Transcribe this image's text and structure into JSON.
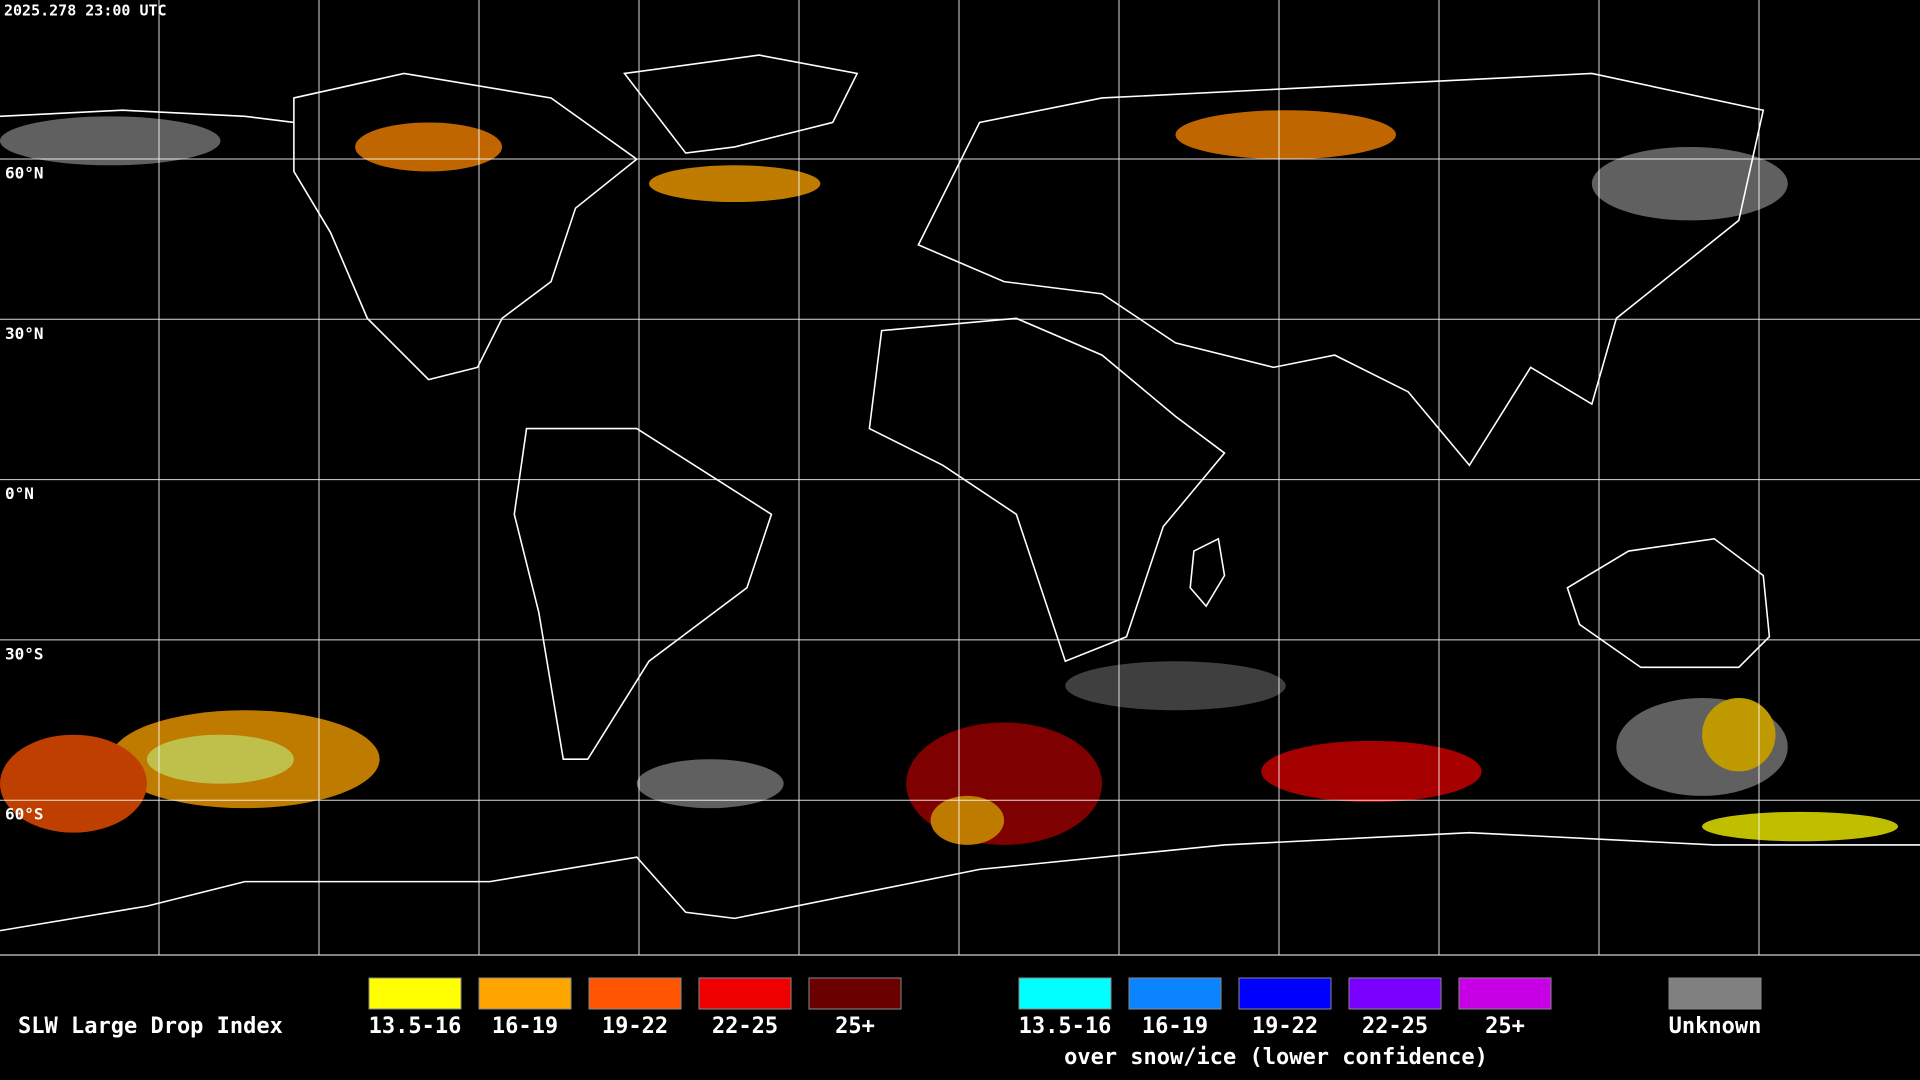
{
  "header": {
    "timestamp": "2025.278 23:00 UTC"
  },
  "map": {
    "latitude_labels": [
      "60°N",
      "30°N",
      "0°N",
      "30°S",
      "60°S"
    ]
  },
  "legend": {
    "title": "SLW Large Drop Index",
    "groups": [
      {
        "items": [
          {
            "label": "13.5-16",
            "color": "#ffff00"
          },
          {
            "label": "16-19",
            "color": "#ffa500"
          },
          {
            "label": "19-22",
            "color": "#ff5500"
          },
          {
            "label": "22-25",
            "color": "#ee0000"
          },
          {
            "label": "25+",
            "color": "#6b0000"
          }
        ]
      },
      {
        "items": [
          {
            "label": "13.5-16",
            "color": "#00ffff"
          },
          {
            "label": "16-19",
            "color": "#0a84ff"
          },
          {
            "label": "19-22",
            "color": "#0000ff"
          },
          {
            "label": "22-25",
            "color": "#7a00ff"
          },
          {
            "label": "25+",
            "color": "#c800e6"
          }
        ],
        "note": "over snow/ice (lower confidence)"
      }
    ],
    "unknown": {
      "label": "Unknown",
      "color": "#808080"
    }
  }
}
